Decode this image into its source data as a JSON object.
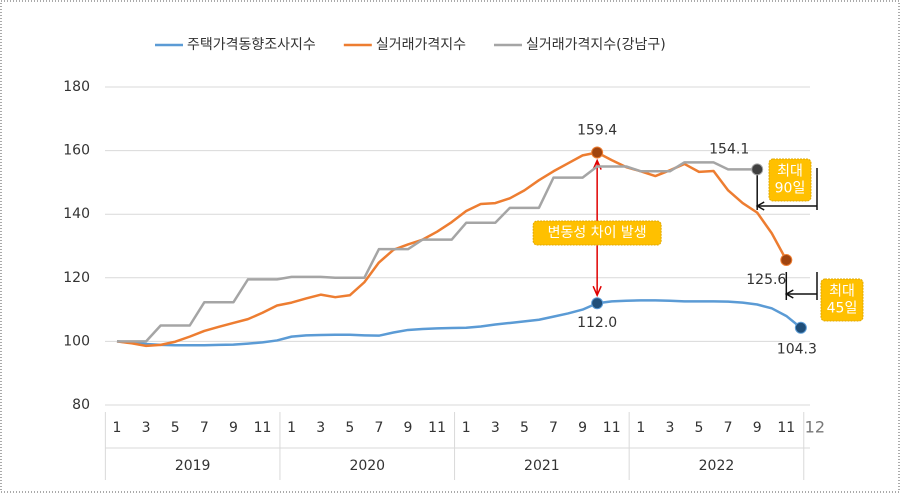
{
  "chart_data": {
    "type": "line",
    "categories": [
      "1",
      null,
      "3",
      null,
      "5",
      null,
      "7",
      null,
      "9",
      null,
      "11",
      null,
      "1",
      null,
      "3",
      null,
      "5",
      null,
      "7",
      null,
      "9",
      null,
      "11",
      null,
      "1",
      null,
      "3",
      null,
      "5",
      null,
      "7",
      null,
      "9",
      null,
      "11",
      null,
      "1",
      null,
      "3",
      null,
      "5",
      null,
      "7",
      null,
      "9",
      null,
      "11",
      "12"
    ],
    "years": [
      "2019",
      "2020",
      "2021",
      "2022"
    ],
    "ylim": [
      80,
      180
    ],
    "yticks": [
      80,
      100,
      120,
      140,
      160,
      180
    ],
    "grid": true,
    "series": [
      {
        "name": "주택가격동향조사지수",
        "color": "#5b9bd5",
        "marker_color": "#1f4e79",
        "values": [
          100,
          99.6,
          99.2,
          98.9,
          98.8,
          98.8,
          98.8,
          98.9,
          99.0,
          99.3,
          99.7,
          100.3,
          101.5,
          101.9,
          102.0,
          102.1,
          102.1,
          101.9,
          101.8,
          102.8,
          103.6,
          103.9,
          104.1,
          104.2,
          104.3,
          104.7,
          105.3,
          105.8,
          106.3,
          106.8,
          107.8,
          108.8,
          110.0,
          112.0,
          112.6,
          112.8,
          112.9,
          112.9,
          112.8,
          112.6,
          112.6,
          112.6,
          112.5,
          112.2,
          111.6,
          110.4,
          108.0,
          104.3
        ],
        "value_labels": [
          null,
          null,
          null,
          null,
          null,
          null,
          null,
          null,
          null,
          null,
          null,
          null,
          null,
          null,
          null,
          null,
          null,
          null,
          null,
          null,
          null,
          null,
          null,
          null,
          null,
          null,
          null,
          null,
          null,
          null,
          null,
          null,
          null,
          "112.0",
          null,
          null,
          null,
          null,
          null,
          null,
          null,
          null,
          null,
          null,
          null,
          null,
          null,
          "104.3"
        ]
      },
      {
        "name": "실거래가격지수",
        "color": "#ed7d31",
        "marker_color": "#a0440f",
        "values": [
          100,
          99.4,
          98.6,
          98.9,
          99.9,
          101.5,
          103.3,
          104.6,
          105.8,
          107.0,
          109.0,
          111.3,
          112.2,
          113.5,
          114.7,
          113.9,
          114.5,
          118.6,
          124.8,
          128.8,
          130.5,
          132.0,
          134.5,
          137.5,
          141.0,
          143.2,
          143.5,
          145.0,
          147.5,
          150.7,
          153.5,
          156.0,
          158.5,
          159.4,
          157.0,
          154.8,
          153.5,
          152.0,
          153.8,
          155.8,
          153.3,
          153.6,
          147.5,
          143.5,
          140.5,
          134.0,
          125.6,
          null
        ],
        "value_labels": [
          null,
          null,
          null,
          null,
          null,
          null,
          null,
          null,
          null,
          null,
          null,
          null,
          null,
          null,
          null,
          null,
          null,
          null,
          null,
          null,
          null,
          null,
          null,
          null,
          null,
          null,
          null,
          null,
          null,
          null,
          null,
          null,
          null,
          "159.4",
          null,
          null,
          null,
          null,
          null,
          null,
          null,
          null,
          null,
          null,
          null,
          null,
          "125.6",
          null
        ]
      },
      {
        "name": "실거래가격지수(강남구)",
        "color": "#a5a5a5",
        "marker_color": "#404040",
        "values": [
          100,
          100,
          100,
          105,
          105,
          105,
          112.3,
          112.3,
          112.3,
          119.5,
          119.5,
          119.5,
          120.3,
          120.3,
          120.3,
          120.0,
          120.0,
          120.0,
          129.0,
          129.0,
          129.0,
          132.0,
          132.0,
          132.0,
          137.3,
          137.3,
          137.3,
          142.0,
          142.0,
          142.0,
          151.5,
          151.5,
          151.5,
          155.0,
          155.0,
          155.0,
          153.5,
          153.5,
          153.5,
          156.3,
          156.3,
          156.3,
          154.1,
          154.1,
          154.1,
          null,
          null,
          null
        ],
        "value_labels": [
          null,
          null,
          null,
          null,
          null,
          null,
          null,
          null,
          null,
          null,
          null,
          null,
          null,
          null,
          null,
          null,
          null,
          null,
          null,
          null,
          null,
          null,
          null,
          null,
          null,
          null,
          null,
          null,
          null,
          null,
          null,
          null,
          null,
          null,
          null,
          null,
          null,
          null,
          null,
          null,
          null,
          null,
          null,
          null,
          "154.1",
          null,
          null,
          null
        ]
      }
    ],
    "annotations": [
      {
        "lines": [
          "변동성 차이 발생"
        ]
      },
      {
        "lines": [
          "최대",
          "90일"
        ]
      },
      {
        "lines": [
          "최대",
          "45일"
        ]
      }
    ]
  }
}
